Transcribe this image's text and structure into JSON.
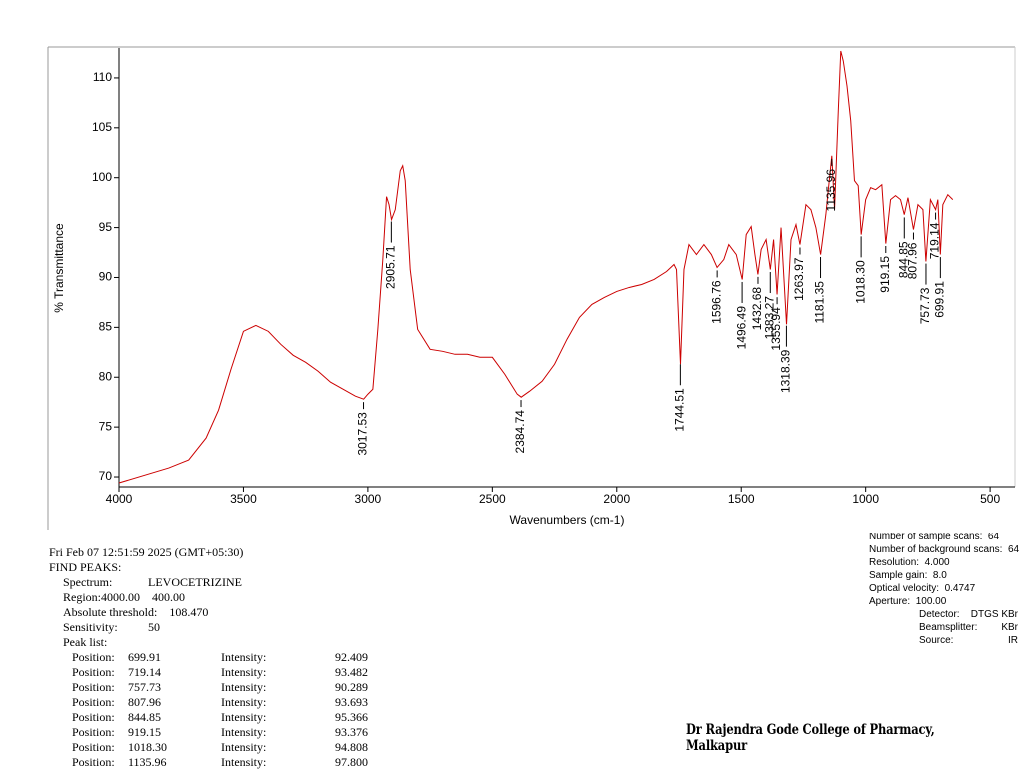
{
  "chart_data": {
    "type": "line",
    "x_label": "Wavenumbers (cm-1)",
    "y_label": "% Transmittance",
    "color": "#cc0000",
    "x": [
      4000,
      3800,
      3750,
      3720,
      3650,
      3600,
      3550,
      3500,
      3450,
      3400,
      3350,
      3300,
      3250,
      3200,
      3150,
      3100,
      3050,
      3017,
      3000,
      2980,
      2960,
      2940,
      2925,
      2915,
      2905,
      2890,
      2870,
      2860,
      2850,
      2830,
      2800,
      2750,
      2700,
      2650,
      2600,
      2550,
      2500,
      2450,
      2400,
      2384,
      2350,
      2300,
      2250,
      2200,
      2150,
      2100,
      2050,
      2000,
      1950,
      1900,
      1850,
      1800,
      1770,
      1760,
      1744,
      1730,
      1710,
      1680,
      1650,
      1620,
      1597,
      1570,
      1550,
      1520,
      1496,
      1480,
      1460,
      1445,
      1433,
      1420,
      1400,
      1383,
      1370,
      1356,
      1340,
      1318,
      1300,
      1280,
      1264,
      1240,
      1220,
      1200,
      1181,
      1160,
      1150,
      1136,
      1125,
      1110,
      1100,
      1090,
      1075,
      1060,
      1045,
      1030,
      1018,
      1000,
      980,
      960,
      935,
      919,
      900,
      880,
      860,
      845,
      830,
      808,
      790,
      770,
      758,
      740,
      719,
      710,
      700,
      690,
      670,
      650
    ],
    "values": [
      69.4,
      70.9,
      71.4,
      71.7,
      73.9,
      76.7,
      80.8,
      84.6,
      85.2,
      84.6,
      83.3,
      82.2,
      81.5,
      80.6,
      79.5,
      78.8,
      78.1,
      77.8,
      78.3,
      78.8,
      84.8,
      91.8,
      98.1,
      97.3,
      95.8,
      96.8,
      100.7,
      101.2,
      99.7,
      90.8,
      84.8,
      82.8,
      82.6,
      82.3,
      82.3,
      82.0,
      82.0,
      80.3,
      78.3,
      78.0,
      78.6,
      79.6,
      81.3,
      83.8,
      86.0,
      87.3,
      88.0,
      88.6,
      89.0,
      89.3,
      89.8,
      90.6,
      91.3,
      90.8,
      81.3,
      90.8,
      93.3,
      92.3,
      93.3,
      92.3,
      91.0,
      91.8,
      93.3,
      92.3,
      89.8,
      94.3,
      95.1,
      92.3,
      90.3,
      92.8,
      93.8,
      90.8,
      93.8,
      88.3,
      95.0,
      85.3,
      93.8,
      95.3,
      93.3,
      97.3,
      96.8,
      95.0,
      92.3,
      96.3,
      98.8,
      102.2,
      96.8,
      106.7,
      112.7,
      111.7,
      109.2,
      105.7,
      99.7,
      99.2,
      94.3,
      97.8,
      99.0,
      98.8,
      99.3,
      93.4,
      97.8,
      98.2,
      97.8,
      96.3,
      98.0,
      94.8,
      97.3,
      96.8,
      91.6,
      97.8,
      96.8,
      97.8,
      92.3,
      97.3,
      98.3,
      97.8
    ],
    "xlim": [
      4000,
      400
    ],
    "xticks": [
      4000,
      3500,
      3000,
      2500,
      2000,
      1500,
      1000,
      500
    ],
    "ylim": [
      69,
      113
    ],
    "yticks": [
      70,
      75,
      80,
      85,
      90,
      95,
      100,
      105,
      110
    ],
    "peaks": [
      3017.53,
      2905.71,
      2384.74,
      1744.51,
      1596.76,
      1496.49,
      1432.68,
      1383.27,
      1355.94,
      1318.39,
      1263.97,
      1181.35,
      1135.96,
      {
        "value": 1018.3,
        "label": "1018.30"
      },
      919.15,
      844.85,
      807.96,
      757.73,
      719.14,
      699.91
    ]
  },
  "report": {
    "timestamp": "Fri Feb 07 12:51:59 2025 (GMT+05:30)",
    "heading": "FIND PEAKS:",
    "spectrum_label": "Spectrum:",
    "spectrum": "LEVOCETRIZINE",
    "region": "Region:4000.00    400.00",
    "threshold": "Absolute threshold:    108.470",
    "sensitivity_label": "Sensitivity:",
    "sensitivity": "50",
    "peak_list_label": "Peak list:",
    "peak_rows": [
      [
        "Position:",
        "699.91",
        "Intensity:",
        "92.409"
      ],
      [
        "Position:",
        "719.14",
        "Intensity:",
        "93.482"
      ],
      [
        "Position:",
        "757.73",
        "Intensity:",
        "90.289"
      ],
      [
        "Position:",
        "807.96",
        "Intensity:",
        "93.693"
      ],
      [
        "Position:",
        "844.85",
        "Intensity:",
        "95.366"
      ],
      [
        "Position:",
        "919.15",
        "Intensity:",
        "93.376"
      ],
      [
        "Position:",
        "1018.30",
        "Intensity:",
        "94.808"
      ],
      [
        "Position:",
        "1135.96",
        "Intensity:",
        "97.800"
      ]
    ]
  },
  "instrument": [
    "Number of sample scans:  64",
    "Number of background scans:  64",
    "Resolution:  4.000",
    "Sample gain:  8.0",
    "Optical velocity:  0.4747",
    "Aperture:  100.00"
  ],
  "optics": [
    [
      "Detector:",
      "DTGS KBr"
    ],
    [
      "Beamsplitter:",
      "KBr"
    ],
    [
      "Source:",
      "IR"
    ]
  ],
  "footer": "Dr Rajendra Gode College of Pharmacy, Malkapur"
}
